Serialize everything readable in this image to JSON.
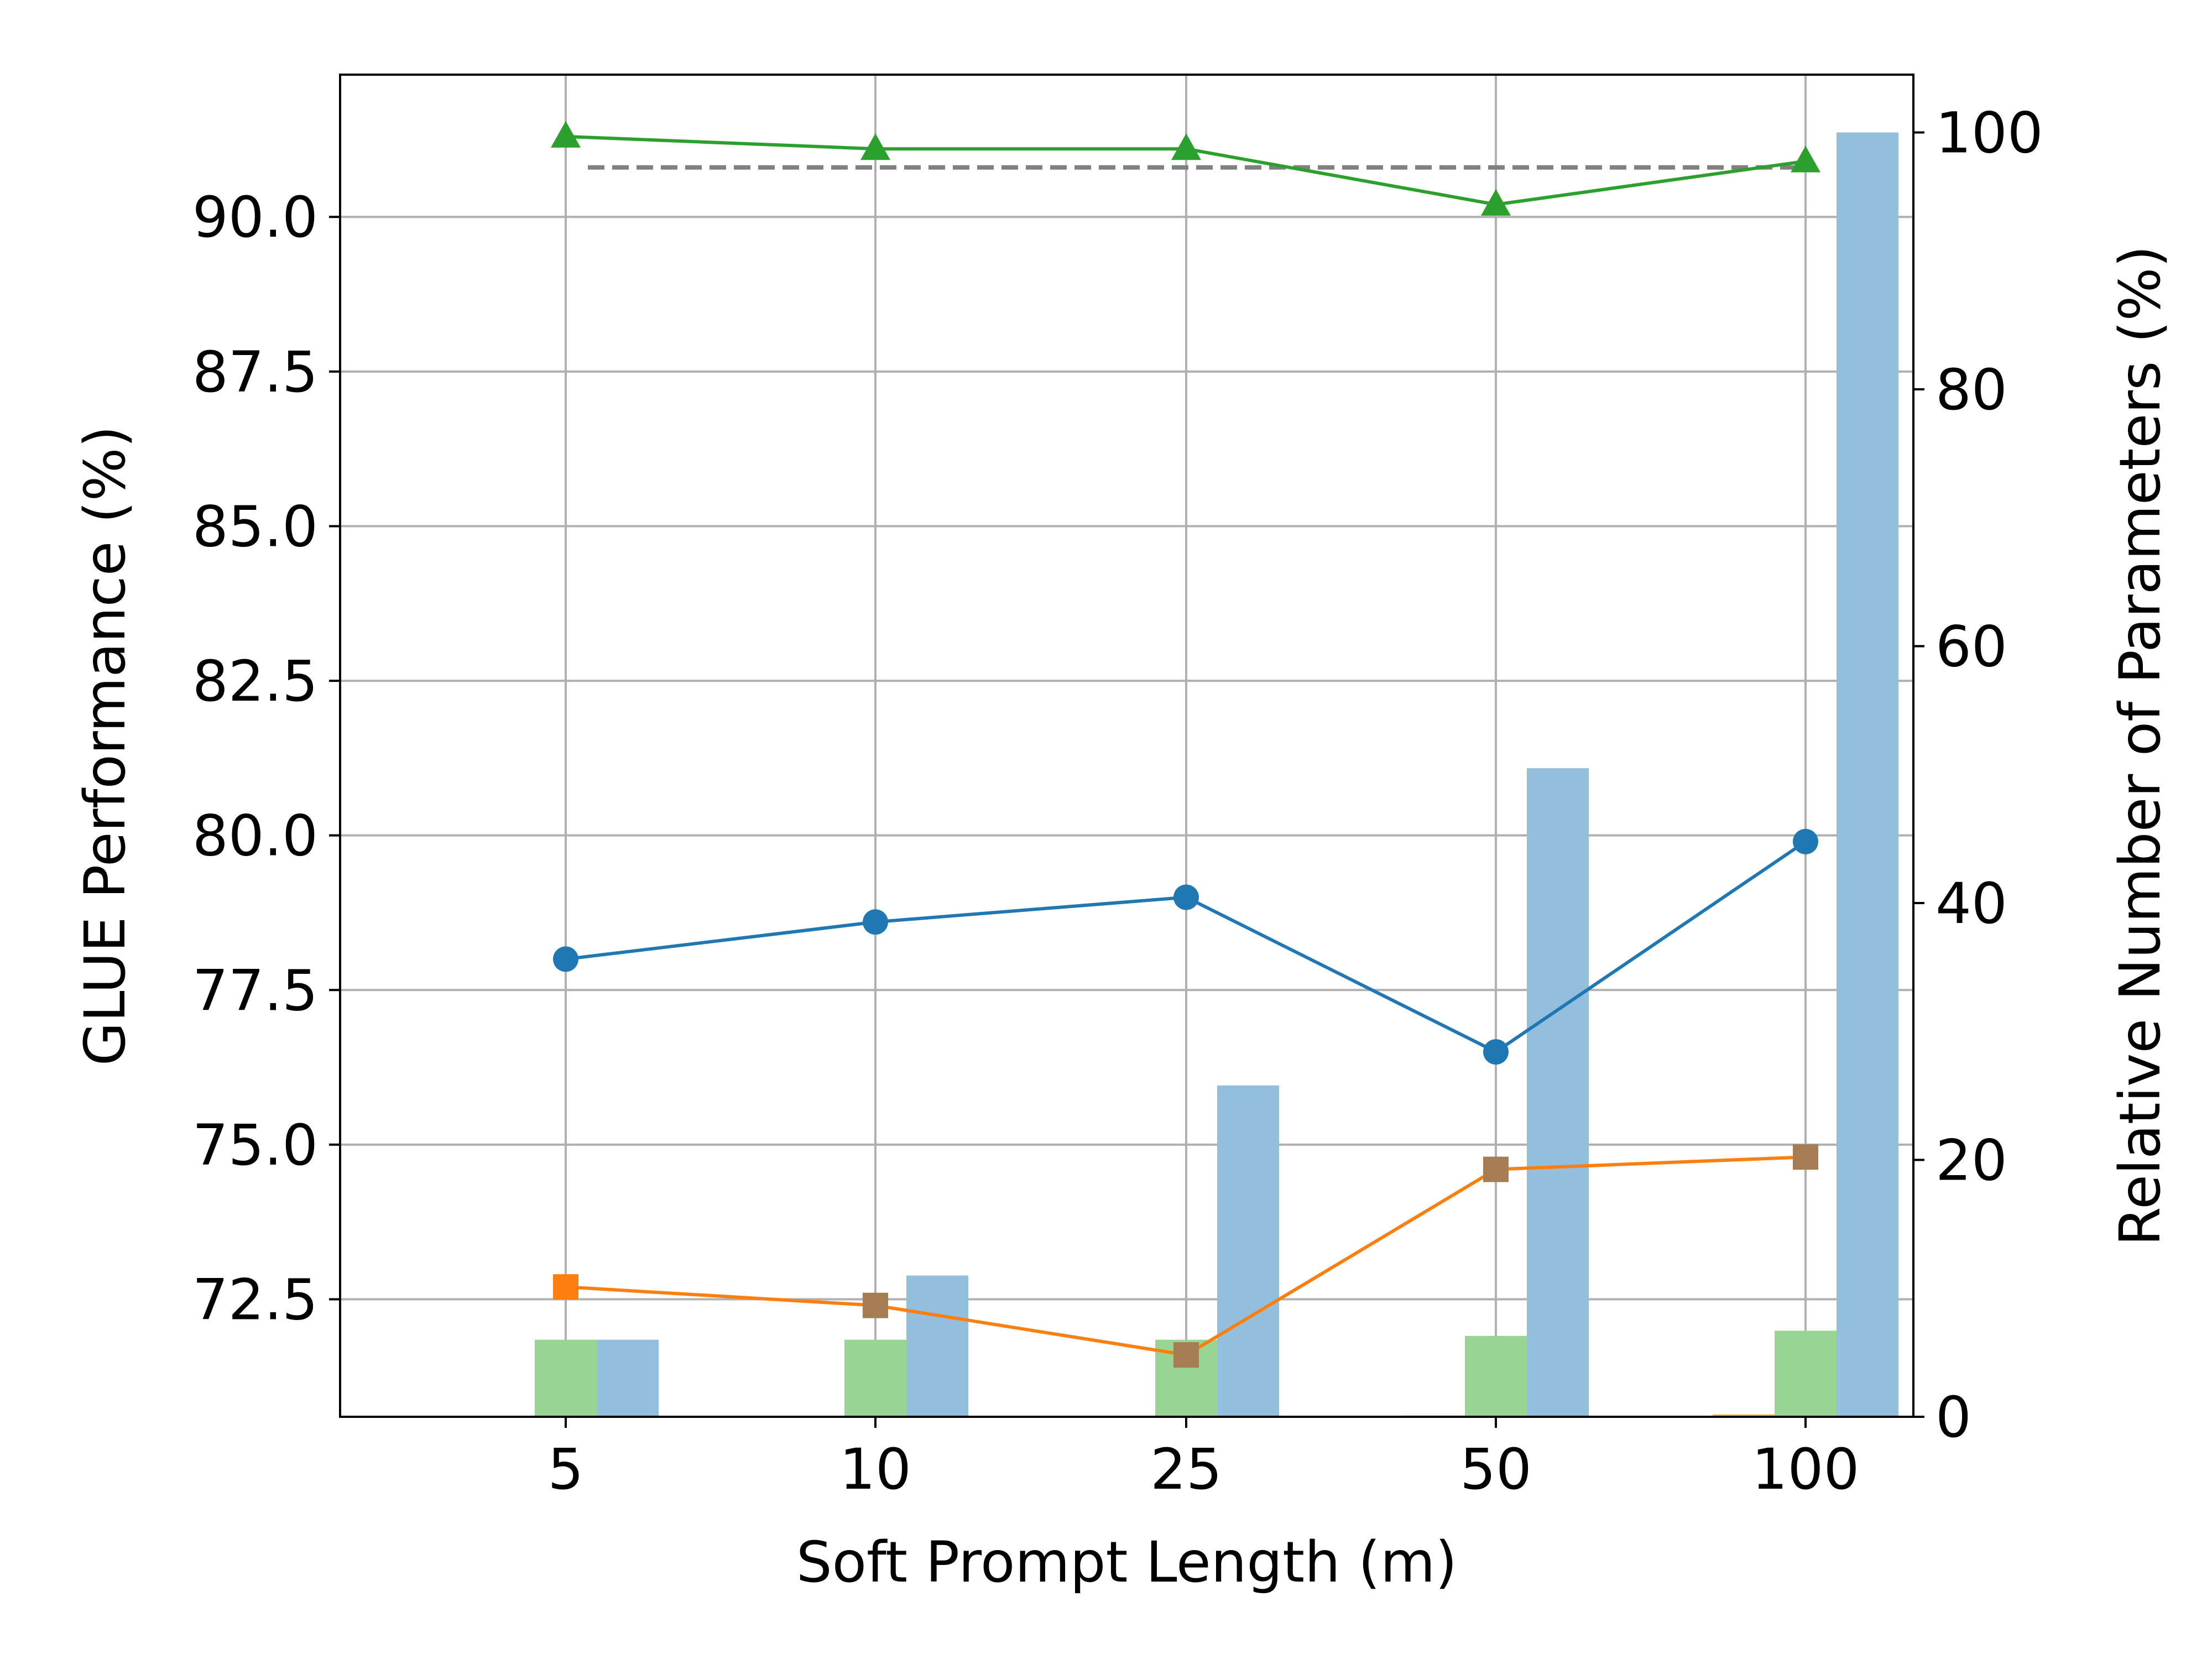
{
  "chart_data": {
    "type": "bar",
    "xlabel": "Soft Prompt Length (m)",
    "ylabel": "GLUE Performance (%)",
    "y2label": "Relative Number of Parameters (%)",
    "categories": [
      "5",
      "10",
      "25",
      "50",
      "100"
    ],
    "ylim": [
      70.6,
      92.3
    ],
    "y_ticks": [
      "72.5",
      "75.0",
      "77.5",
      "80.0",
      "82.5",
      "85.0",
      "87.5",
      "90.0"
    ],
    "y2lim": [
      0,
      104.5
    ],
    "y2_ticks": [
      "0",
      "20",
      "40",
      "60",
      "80",
      "100"
    ],
    "grid": true,
    "line_series": [
      {
        "values": [
          91.3,
          91.1,
          91.1,
          90.2,
          90.9
        ],
        "color": "#2ca02c",
        "marker": "triangle"
      },
      {
        "values": [
          78.0,
          78.6,
          79.0,
          76.5,
          79.9
        ],
        "color": "#1f77b4",
        "marker": "circle"
      },
      {
        "values": [
          72.7,
          72.4,
          71.6,
          74.6,
          74.8
        ],
        "color": "#ff7f0e",
        "marker": "square",
        "marker_colors": [
          "#ff7f0e",
          "#a67c52",
          "#a67c52",
          "#a67c52",
          "#a67c52"
        ]
      }
    ],
    "reference_line": {
      "value": 90.8,
      "color": "#808080",
      "style": "dashed"
    },
    "bar_series": [
      {
        "values": [
          0,
          0,
          0,
          0.1,
          0.2
        ],
        "color": "#ffbb78"
      },
      {
        "values": [
          6,
          6,
          6,
          6.3,
          6.7
        ],
        "color": "#98d594"
      },
      {
        "values": [
          6,
          11,
          25.8,
          50.5,
          100
        ],
        "color": "#93bfdc"
      }
    ]
  }
}
